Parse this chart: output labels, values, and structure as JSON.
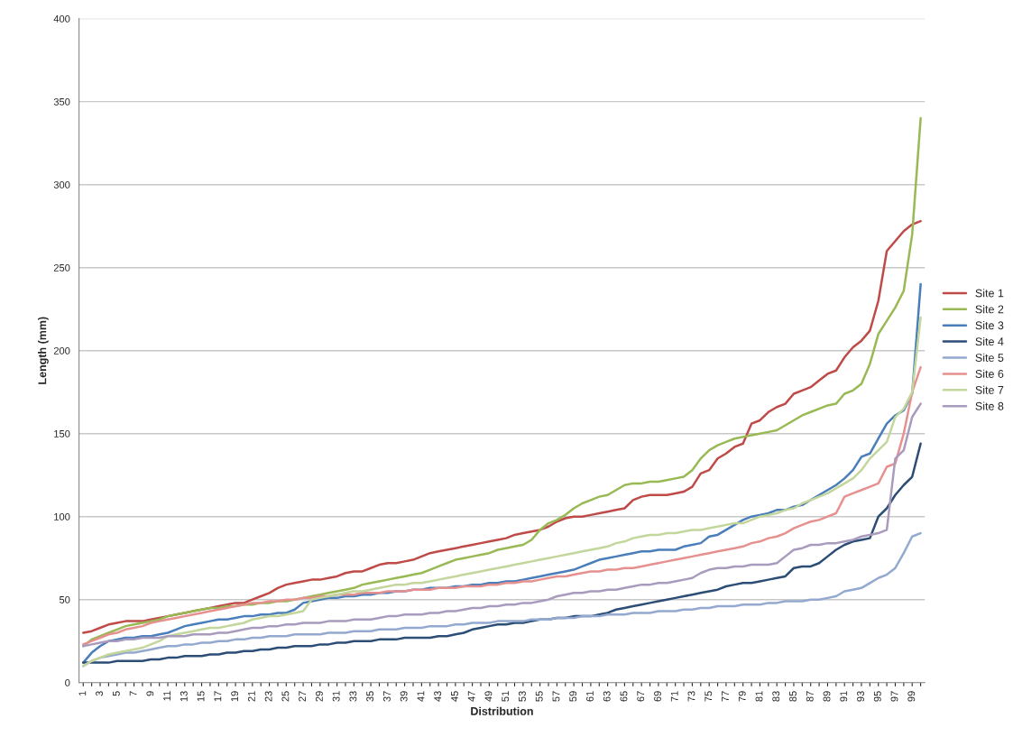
{
  "chart_data": {
    "type": "line",
    "xlabel": "Distribution",
    "ylabel": "Length (mm)",
    "categories": [
      "1",
      null,
      "3",
      null,
      "5",
      null,
      "7",
      null,
      "9",
      null,
      "11",
      null,
      "13",
      null,
      "15",
      null,
      "17",
      null,
      "19",
      null,
      "21",
      null,
      "23",
      null,
      "25",
      null,
      "27",
      null,
      "29",
      null,
      "31",
      null,
      "33",
      null,
      "35",
      null,
      "37",
      null,
      "39",
      null,
      "41",
      null,
      "43",
      null,
      "45",
      null,
      "47",
      null,
      "49",
      null,
      "51",
      null,
      "53",
      null,
      "55",
      null,
      "57",
      null,
      "59",
      null,
      "61",
      null,
      "63",
      null,
      "65",
      null,
      "67",
      null,
      "69",
      null,
      "71",
      null,
      "73",
      null,
      "75",
      null,
      "77",
      null,
      "79",
      null,
      "81",
      null,
      "83",
      null,
      "85",
      null,
      "87",
      null,
      "89",
      null,
      "91",
      null,
      "93",
      null,
      "95",
      null,
      "97",
      null,
      "99",
      null
    ],
    "ylim": [
      0,
      400
    ],
    "yticks": [
      0,
      50,
      100,
      150,
      200,
      250,
      300,
      350,
      400
    ],
    "grid": "y",
    "legend": "right",
    "marker": "none",
    "line_style": "solid",
    "series": [
      {
        "name": "Site 1",
        "color": "#be4b48",
        "values": [
          30,
          31,
          33,
          35,
          36,
          37,
          37,
          37,
          38,
          39,
          40,
          41,
          42,
          43,
          44,
          45,
          46,
          47,
          48,
          48,
          50,
          52,
          54,
          57,
          59,
          60,
          61,
          62,
          62,
          63,
          64,
          66,
          67,
          67,
          69,
          71,
          72,
          72,
          73,
          74,
          76,
          78,
          79,
          80,
          81,
          82,
          83,
          84,
          85,
          86,
          87,
          89,
          90,
          91,
          92,
          94,
          97,
          99,
          100,
          100,
          101,
          102,
          103,
          104,
          105,
          110,
          112,
          113,
          113,
          113,
          114,
          115,
          118,
          126,
          128,
          135,
          138,
          142,
          144,
          156,
          158,
          163,
          166,
          168,
          174,
          176,
          178,
          182,
          186,
          188,
          196,
          202,
          206,
          212,
          230,
          260,
          266,
          272,
          276,
          278
        ]
      },
      {
        "name": "Site 2",
        "color": "#98b954",
        "values": [
          22,
          26,
          28,
          30,
          32,
          34,
          35,
          36,
          37,
          38,
          40,
          41,
          42,
          43,
          44,
          45,
          45,
          46,
          46,
          47,
          47,
          48,
          48,
          49,
          49,
          50,
          51,
          52,
          53,
          54,
          55,
          56,
          57,
          59,
          60,
          61,
          62,
          63,
          64,
          65,
          66,
          68,
          70,
          72,
          74,
          75,
          76,
          77,
          78,
          80,
          81,
          82,
          83,
          86,
          92,
          96,
          98,
          101,
          105,
          108,
          110,
          112,
          113,
          116,
          119,
          120,
          120,
          121,
          121,
          122,
          123,
          124,
          128,
          135,
          140,
          143,
          145,
          147,
          148,
          149,
          150,
          151,
          152,
          155,
          158,
          161,
          163,
          165,
          167,
          168,
          174,
          176,
          180,
          192,
          210,
          218,
          226,
          236,
          270,
          340
        ]
      },
      {
        "name": "Site 3",
        "color": "#4a7ebb",
        "values": [
          12,
          18,
          22,
          25,
          26,
          27,
          27,
          28,
          28,
          29,
          30,
          32,
          34,
          35,
          36,
          37,
          38,
          38,
          39,
          40,
          40,
          41,
          41,
          42,
          42,
          44,
          48,
          49,
          50,
          51,
          51,
          52,
          52,
          53,
          53,
          54,
          54,
          55,
          55,
          56,
          56,
          57,
          57,
          57,
          58,
          58,
          59,
          59,
          60,
          60,
          61,
          61,
          62,
          63,
          64,
          65,
          66,
          67,
          68,
          70,
          72,
          74,
          75,
          76,
          77,
          78,
          79,
          79,
          80,
          80,
          80,
          82,
          83,
          84,
          88,
          89,
          92,
          95,
          98,
          100,
          101,
          102,
          104,
          104,
          106,
          107,
          110,
          113,
          116,
          119,
          123,
          128,
          136,
          138,
          147,
          156,
          161,
          164,
          174,
          240
        ]
      },
      {
        "name": "Site 4",
        "color": "#2c4d75",
        "values": [
          12,
          12,
          12,
          12,
          13,
          13,
          13,
          13,
          14,
          14,
          15,
          15,
          16,
          16,
          16,
          17,
          17,
          18,
          18,
          19,
          19,
          20,
          20,
          21,
          21,
          22,
          22,
          22,
          23,
          23,
          24,
          24,
          25,
          25,
          25,
          26,
          26,
          26,
          27,
          27,
          27,
          27,
          28,
          28,
          29,
          30,
          32,
          33,
          34,
          35,
          35,
          36,
          36,
          37,
          38,
          38,
          39,
          39,
          40,
          40,
          40,
          41,
          42,
          44,
          45,
          46,
          47,
          48,
          49,
          50,
          51,
          52,
          53,
          54,
          55,
          56,
          58,
          59,
          60,
          60,
          61,
          62,
          63,
          64,
          69,
          70,
          70,
          72,
          76,
          80,
          83,
          85,
          86,
          87,
          100,
          105,
          113,
          119,
          124,
          144
        ]
      },
      {
        "name": "Site 5",
        "color": "#93a9cf",
        "values": [
          10,
          13,
          15,
          16,
          17,
          18,
          18,
          19,
          20,
          21,
          22,
          22,
          23,
          23,
          24,
          24,
          25,
          25,
          26,
          26,
          27,
          27,
          28,
          28,
          28,
          29,
          29,
          29,
          29,
          30,
          30,
          30,
          31,
          31,
          31,
          32,
          32,
          32,
          33,
          33,
          33,
          34,
          34,
          34,
          35,
          35,
          36,
          36,
          36,
          37,
          37,
          37,
          37,
          38,
          38,
          38,
          39,
          39,
          39,
          40,
          40,
          40,
          41,
          41,
          41,
          42,
          42,
          42,
          43,
          43,
          43,
          44,
          44,
          45,
          45,
          46,
          46,
          46,
          47,
          47,
          47,
          48,
          48,
          49,
          49,
          49,
          50,
          50,
          51,
          52,
          55,
          56,
          57,
          60,
          63,
          65,
          69,
          78,
          88,
          90
        ]
      },
      {
        "name": "Site 6",
        "color": "#e6918f",
        "values": [
          23,
          25,
          27,
          29,
          30,
          32,
          33,
          34,
          36,
          37,
          38,
          39,
          40,
          41,
          42,
          43,
          44,
          45,
          46,
          47,
          48,
          48,
          49,
          49,
          50,
          50,
          51,
          51,
          52,
          52,
          53,
          53,
          53,
          54,
          54,
          54,
          55,
          55,
          55,
          56,
          56,
          56,
          57,
          57,
          57,
          58,
          58,
          58,
          59,
          59,
          60,
          60,
          61,
          61,
          62,
          63,
          64,
          64,
          65,
          66,
          67,
          67,
          68,
          68,
          69,
          69,
          70,
          71,
          72,
          73,
          74,
          75,
          76,
          77,
          78,
          79,
          80,
          81,
          82,
          84,
          85,
          87,
          88,
          90,
          93,
          95,
          97,
          98,
          100,
          102,
          112,
          114,
          116,
          118,
          120,
          130,
          132,
          150,
          175,
          190
        ]
      },
      {
        "name": "Site 7",
        "color": "#c3d69b",
        "values": [
          10,
          13,
          15,
          17,
          18,
          19,
          20,
          21,
          23,
          25,
          28,
          29,
          30,
          31,
          32,
          33,
          33,
          34,
          35,
          36,
          38,
          39,
          40,
          40,
          41,
          42,
          43,
          50,
          51,
          52,
          53,
          54,
          55,
          55,
          56,
          57,
          58,
          59,
          59,
          60,
          60,
          61,
          62,
          63,
          64,
          65,
          66,
          67,
          68,
          69,
          70,
          71,
          72,
          73,
          74,
          75,
          76,
          77,
          78,
          79,
          80,
          81,
          82,
          84,
          85,
          87,
          88,
          89,
          89,
          90,
          90,
          91,
          92,
          92,
          93,
          94,
          95,
          96,
          96,
          98,
          100,
          101,
          102,
          104,
          105,
          108,
          110,
          112,
          114,
          117,
          120,
          123,
          128,
          135,
          140,
          145,
          160,
          165,
          175,
          220
        ]
      },
      {
        "name": "Site 8",
        "color": "#a99bbd",
        "values": [
          22,
          23,
          24,
          25,
          25,
          26,
          26,
          27,
          27,
          27,
          28,
          28,
          28,
          29,
          29,
          29,
          30,
          30,
          31,
          32,
          33,
          33,
          34,
          34,
          35,
          35,
          36,
          36,
          36,
          37,
          37,
          37,
          38,
          38,
          38,
          39,
          40,
          40,
          41,
          41,
          41,
          42,
          42,
          43,
          43,
          44,
          45,
          45,
          46,
          46,
          47,
          47,
          48,
          48,
          49,
          50,
          52,
          53,
          54,
          54,
          55,
          55,
          56,
          56,
          57,
          58,
          59,
          59,
          60,
          60,
          61,
          62,
          63,
          66,
          68,
          69,
          69,
          70,
          70,
          71,
          71,
          71,
          72,
          76,
          80,
          81,
          83,
          83,
          84,
          84,
          85,
          86,
          88,
          89,
          90,
          92,
          135,
          140,
          160,
          168
        ]
      }
    ]
  }
}
